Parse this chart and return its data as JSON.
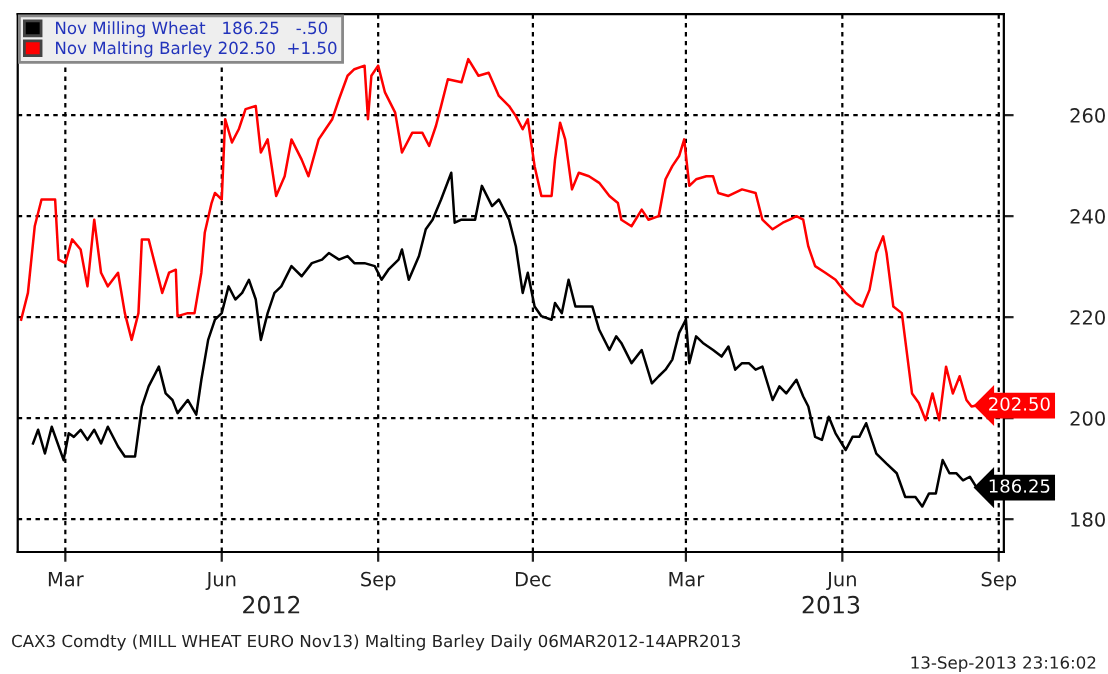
{
  "chart_data": {
    "type": "line",
    "xlim": [
      "2012-02-02",
      "2013-09-04"
    ],
    "xticks": [
      {
        "value": "2012-03-01",
        "label": "Mar"
      },
      {
        "value": "2012-06-01",
        "label": "Jun"
      },
      {
        "value": "2012-09-01",
        "label": "Sep"
      },
      {
        "value": "2012-12-01",
        "label": "Dec"
      },
      {
        "value": "2013-03-01",
        "label": "Mar"
      },
      {
        "value": "2013-06-01",
        "label": "Jun"
      },
      {
        "value": "2013-09-01",
        "label": "Sep"
      }
    ],
    "ylim": [
      173.5,
      280
    ],
    "yticks": [
      180,
      200,
      220,
      240,
      260
    ],
    "grid": true,
    "legend": "top left",
    "annotations": [
      "2012",
      "2013",
      "CAX3 Comdty (MILL WHEAT EURO Nov13) Malting Barley Daily 06MAR2012-14APR2013",
      "13-Sep-2013 23:16:02"
    ],
    "series": [
      {
        "name": "Nov Milling Wheat   186.25   -.50",
        "color": "#000000",
        "x": [
          "2012-02-11",
          "2012-02-14",
          "2012-02-18",
          "2012-02-22",
          "2012-02-29",
          "2012-03-03",
          "2012-03-06",
          "2012-03-10",
          "2012-03-14",
          "2012-03-18",
          "2012-03-22",
          "2012-03-26",
          "2012-04-01",
          "2012-04-05",
          "2012-04-11",
          "2012-04-15",
          "2012-04-19",
          "2012-04-25",
          "2012-04-29",
          "2012-05-03",
          "2012-05-06",
          "2012-05-12",
          "2012-05-17",
          "2012-05-20",
          "2012-05-24",
          "2012-05-28",
          "2012-06-01",
          "2012-06-05",
          "2012-06-09",
          "2012-06-13",
          "2012-06-17",
          "2012-06-21",
          "2012-06-24",
          "2012-06-28",
          "2012-07-02",
          "2012-07-06",
          "2012-07-12",
          "2012-07-18",
          "2012-07-24",
          "2012-07-30",
          "2012-08-03",
          "2012-08-09",
          "2012-08-14",
          "2012-08-18",
          "2012-08-24",
          "2012-08-30",
          "2012-09-03",
          "2012-09-07",
          "2012-09-13",
          "2012-09-15",
          "2012-09-19",
          "2012-09-25",
          "2012-09-29",
          "2012-10-03",
          "2012-10-08",
          "2012-10-14",
          "2012-10-16",
          "2012-10-20",
          "2012-10-24",
          "2012-10-28",
          "2012-11-01",
          "2012-11-07",
          "2012-11-11",
          "2012-11-17",
          "2012-11-21",
          "2012-11-25",
          "2012-11-28",
          "2012-12-02",
          "2012-12-06",
          "2012-12-12",
          "2012-12-14",
          "2012-12-18",
          "2012-12-22",
          "2012-12-26",
          "2012-12-30",
          "2013-01-05",
          "2013-01-09",
          "2013-01-15",
          "2013-01-19",
          "2013-01-22",
          "2013-01-28",
          "2013-02-03",
          "2013-02-09",
          "2013-02-13",
          "2013-02-17",
          "2013-02-21",
          "2013-02-25",
          "2013-03-01",
          "2013-03-03",
          "2013-03-07",
          "2013-03-11",
          "2013-03-17",
          "2013-03-22",
          "2013-03-26",
          "2013-03-30",
          "2013-04-03",
          "2013-04-07",
          "2013-04-11",
          "2013-04-15",
          "2013-04-21",
          "2013-04-25",
          "2013-04-29",
          "2013-05-05",
          "2013-05-09",
          "2013-05-12",
          "2013-05-16",
          "2013-05-20",
          "2013-05-24",
          "2013-05-28",
          "2013-06-03",
          "2013-06-07",
          "2013-06-11",
          "2013-06-15",
          "2013-06-21",
          "2013-06-27",
          "2013-07-03",
          "2013-07-08",
          "2013-07-14",
          "2013-07-18",
          "2013-07-22",
          "2013-07-26",
          "2013-07-30",
          "2013-08-03",
          "2013-08-07",
          "2013-08-11",
          "2013-08-15",
          "2013-08-19"
        ],
        "values": [
          195.0,
          197.7,
          193.0,
          198.3,
          191.7,
          197.0,
          196.3,
          197.7,
          195.7,
          197.7,
          195.0,
          198.3,
          194.4,
          192.4,
          192.4,
          202.3,
          206.3,
          210.2,
          204.9,
          203.6,
          201.0,
          203.6,
          200.7,
          207.6,
          215.5,
          219.5,
          220.8,
          226.1,
          223.5,
          224.8,
          227.4,
          223.5,
          215.5,
          220.8,
          224.8,
          226.1,
          230.1,
          228.1,
          230.7,
          231.4,
          232.7,
          231.4,
          232.1,
          230.7,
          230.7,
          230.1,
          227.4,
          229.4,
          231.4,
          233.4,
          227.4,
          232.1,
          237.4,
          239.3,
          243.3,
          248.6,
          238.7,
          239.3,
          239.3,
          239.3,
          246.0,
          242.0,
          243.3,
          239.3,
          234.0,
          224.8,
          228.8,
          222.1,
          220.2,
          219.5,
          222.8,
          220.8,
          227.4,
          222.1,
          222.1,
          222.1,
          217.5,
          213.5,
          216.2,
          214.9,
          210.9,
          213.5,
          206.9,
          208.3,
          209.6,
          211.6,
          216.9,
          219.5,
          210.9,
          216.2,
          214.9,
          213.5,
          212.2,
          214.2,
          209.6,
          210.9,
          210.9,
          209.6,
          210.2,
          203.6,
          206.3,
          204.9,
          207.6,
          204.3,
          202.3,
          196.3,
          195.7,
          200.3,
          197.0,
          193.7,
          196.3,
          196.3,
          199.0,
          193.0,
          191.0,
          189.1,
          184.4,
          184.4,
          182.5,
          185.1,
          185.1,
          191.7,
          189.1,
          189.1,
          187.7,
          188.4,
          186.25
        ],
        "value_labels": [
          null,
          null,
          null,
          null,
          null,
          null,
          null,
          null,
          null,
          null,
          null,
          null,
          null,
          null,
          null,
          null,
          null,
          null,
          null,
          null,
          null,
          null,
          null,
          null,
          null,
          null,
          null,
          null,
          null,
          null,
          null,
          null,
          null,
          null,
          null,
          null,
          null,
          null,
          null,
          null,
          null,
          null,
          null,
          null,
          null,
          null,
          null,
          null,
          null,
          null,
          null,
          null,
          null,
          null,
          null,
          null,
          null,
          null,
          null,
          null,
          null,
          null,
          null,
          null,
          null,
          null,
          null,
          null,
          null,
          null,
          null,
          null,
          null,
          null,
          null,
          null,
          null,
          null,
          null,
          null,
          null,
          null,
          null,
          null,
          null,
          null,
          null,
          null,
          null,
          null,
          null,
          null,
          null,
          null,
          null,
          null,
          null,
          null,
          null,
          null,
          null,
          null,
          null,
          null,
          null,
          null,
          null,
          null,
          null,
          null,
          null,
          null,
          null,
          null,
          null,
          null,
          null,
          null,
          null,
          null,
          null,
          null,
          null,
          null,
          null,
          null,
          "186.25"
        ]
      },
      {
        "name": "Nov Malting Barley 202.50  +1.50",
        "color": "#ff0000",
        "x": [
          "2012-02-04",
          "2012-02-08",
          "2012-02-12",
          "2012-02-16",
          "2012-02-24",
          "2012-02-26",
          "2012-03-01",
          "2012-03-05",
          "2012-03-10",
          "2012-03-14",
          "2012-03-18",
          "2012-03-22",
          "2012-03-26",
          "2012-04-01",
          "2012-04-05",
          "2012-04-09",
          "2012-04-13",
          "2012-04-15",
          "2012-04-19",
          "2012-04-23",
          "2012-04-27",
          "2012-05-01",
          "2012-05-05",
          "2012-05-06",
          "2012-05-12",
          "2012-05-16",
          "2012-05-20",
          "2012-05-22",
          "2012-05-26",
          "2012-05-28",
          "2012-06-01",
          "2012-06-03",
          "2012-06-07",
          "2012-06-11",
          "2012-06-15",
          "2012-06-21",
          "2012-06-24",
          "2012-06-28",
          "2012-07-03",
          "2012-07-08",
          "2012-07-12",
          "2012-07-18",
          "2012-07-22",
          "2012-07-28",
          "2012-08-01",
          "2012-08-05",
          "2012-08-09",
          "2012-08-14",
          "2012-08-18",
          "2012-08-24",
          "2012-08-26",
          "2012-08-28",
          "2012-09-01",
          "2012-09-05",
          "2012-09-11",
          "2012-09-15",
          "2012-09-21",
          "2012-09-27",
          "2012-10-01",
          "2012-10-05",
          "2012-10-08",
          "2012-10-12",
          "2012-10-20",
          "2012-10-24",
          "2012-10-30",
          "2012-11-05",
          "2012-11-11",
          "2012-11-17",
          "2012-11-21",
          "2012-11-25",
          "2012-11-28",
          "2012-12-02",
          "2012-12-06",
          "2012-12-12",
          "2012-12-14",
          "2012-12-17",
          "2012-12-20",
          "2012-12-24",
          "2012-12-28",
          "2013-01-03",
          "2013-01-09",
          "2013-01-15",
          "2013-01-20",
          "2013-01-22",
          "2013-01-28",
          "2013-02-03",
          "2013-02-07",
          "2013-02-13",
          "2013-02-17",
          "2013-02-21",
          "2013-02-25",
          "2013-02-28",
          "2013-03-03",
          "2013-03-07",
          "2013-03-13",
          "2013-03-17",
          "2013-03-20",
          "2013-03-26",
          "2013-04-03",
          "2013-04-11",
          "2013-04-15",
          "2013-04-21",
          "2013-04-27",
          "2013-05-01",
          "2013-05-05",
          "2013-05-09",
          "2013-05-12",
          "2013-05-16",
          "2013-05-22",
          "2013-05-28",
          "2013-06-03",
          "2013-06-09",
          "2013-06-13",
          "2013-06-17",
          "2013-06-21",
          "2013-06-25",
          "2013-06-27",
          "2013-07-01",
          "2013-07-06",
          "2013-07-12",
          "2013-07-16",
          "2013-07-20",
          "2013-07-24",
          "2013-07-28",
          "2013-08-01",
          "2013-08-05",
          "2013-08-09",
          "2013-08-13",
          "2013-08-16",
          "2013-08-19"
        ],
        "values": [
          219.5,
          224.8,
          238.0,
          243.3,
          243.3,
          231.4,
          230.7,
          235.4,
          233.4,
          226.1,
          239.3,
          228.8,
          226.1,
          228.8,
          220.8,
          215.5,
          220.8,
          235.4,
          235.4,
          230.1,
          224.8,
          228.8,
          229.4,
          220.2,
          220.8,
          220.8,
          228.8,
          236.7,
          242.6,
          244.6,
          243.3,
          259.2,
          254.6,
          257.2,
          261.2,
          261.8,
          252.6,
          255.2,
          244.0,
          247.9,
          255.2,
          251.2,
          247.9,
          255.2,
          257.2,
          259.2,
          263.2,
          267.8,
          269.1,
          269.8,
          259.2,
          267.8,
          269.8,
          264.5,
          260.5,
          252.6,
          256.5,
          256.5,
          253.9,
          257.9,
          261.8,
          267.1,
          266.5,
          271.1,
          267.8,
          268.4,
          263.8,
          261.8,
          259.8,
          257.2,
          259.2,
          249.9,
          244.0,
          244.0,
          251.2,
          258.5,
          255.2,
          245.3,
          248.6,
          247.9,
          246.6,
          244.0,
          242.6,
          239.3,
          238.0,
          241.3,
          239.3,
          240.0,
          247.3,
          249.9,
          251.9,
          255.2,
          246.0,
          247.3,
          247.9,
          247.9,
          244.6,
          244.0,
          245.3,
          244.6,
          239.3,
          237.4,
          238.7,
          239.3,
          240.0,
          239.3,
          234.0,
          230.1,
          228.8,
          227.4,
          224.8,
          222.8,
          222.1,
          225.4,
          232.7,
          236.0,
          232.7,
          222.1,
          220.8,
          204.9,
          203.0,
          199.6,
          204.9,
          199.6,
          210.2,
          204.9,
          208.3,
          203.6,
          202.3,
          202.5
        ],
        "value_labels": [
          null,
          null,
          null,
          null,
          null,
          null,
          null,
          null,
          null,
          null,
          null,
          null,
          null,
          null,
          null,
          null,
          null,
          null,
          null,
          null,
          null,
          null,
          null,
          null,
          null,
          null,
          null,
          null,
          null,
          null,
          null,
          null,
          null,
          null,
          null,
          null,
          null,
          null,
          null,
          null,
          null,
          null,
          null,
          null,
          null,
          null,
          null,
          null,
          null,
          null,
          null,
          null,
          null,
          null,
          null,
          null,
          null,
          null,
          null,
          null,
          null,
          null,
          null,
          null,
          null,
          null,
          null,
          null,
          null,
          null,
          null,
          null,
          null,
          null,
          null,
          null,
          null,
          null,
          null,
          null,
          null,
          null,
          null,
          null,
          null,
          null,
          null,
          null,
          null,
          null,
          null,
          null,
          null,
          null,
          null,
          null,
          null,
          null,
          null,
          null,
          null,
          null,
          null,
          null,
          null,
          null,
          null,
          null,
          null,
          null,
          null,
          null,
          null,
          null,
          null,
          null,
          null,
          null,
          null,
          null,
          null,
          null,
          null,
          null,
          null,
          null,
          null,
          null,
          null,
          "202.50"
        ]
      }
    ]
  }
}
